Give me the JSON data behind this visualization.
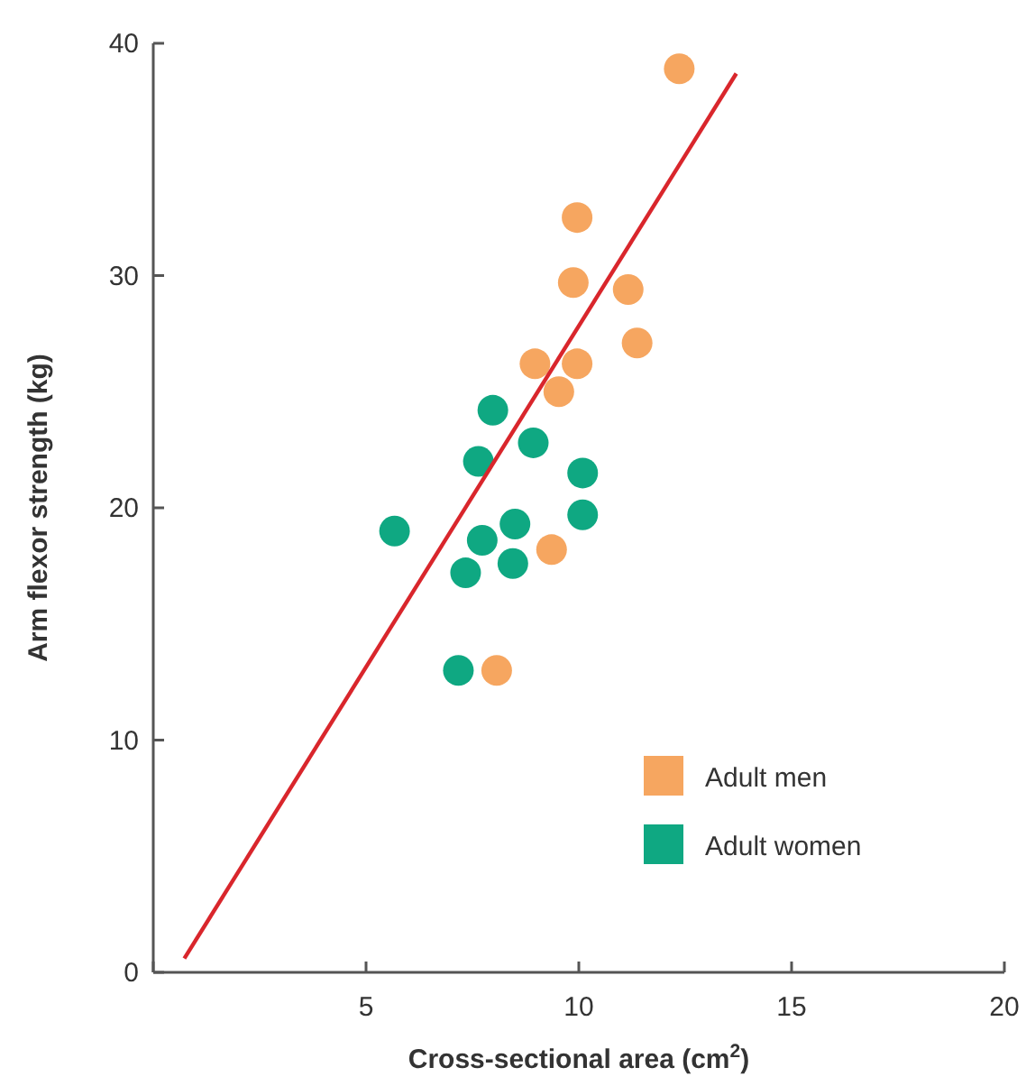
{
  "chart_data": {
    "type": "scatter",
    "xlabel": "Cross-sectional area (cm$^{2}$)",
    "ylabel": "Arm flexor strength (kg)",
    "xlim": [
      0,
      20
    ],
    "ylim": [
      0,
      40
    ],
    "xticks": [
      {
        "value": 0,
        "label": null
      },
      5,
      10,
      15,
      20
    ],
    "yticks": [
      0,
      10,
      20,
      30,
      40
    ],
    "grid": false,
    "legend": "bottom right",
    "series": [
      {
        "name": "Adult men",
        "color": "#f6a660",
        "marker": "circle",
        "x": [
          12.36,
          9.96,
          9.87,
          11.16,
          11.37,
          8.97,
          9.96,
          9.53,
          9.36,
          8.07
        ],
        "values": [
          38.9,
          32.5,
          29.7,
          29.4,
          27.1,
          26.2,
          26.2,
          25.0,
          18.2,
          13.0
        ]
      },
      {
        "name": "Adult women",
        "color": "#0fa882",
        "marker": "circle",
        "x": [
          7.98,
          7.64,
          8.93,
          10.09,
          5.67,
          7.73,
          8.5,
          7.34,
          8.45,
          10.09,
          7.17
        ],
        "values": [
          24.2,
          22.0,
          22.8,
          21.5,
          19.0,
          18.6,
          19.3,
          17.2,
          17.6,
          19.7,
          13.0
        ]
      },
      {
        "type": "line",
        "color": "#d9262c",
        "marker": "none",
        "x": [
          0.73,
          13.7
        ],
        "values": [
          0.6,
          38.7
        ]
      }
    ]
  }
}
